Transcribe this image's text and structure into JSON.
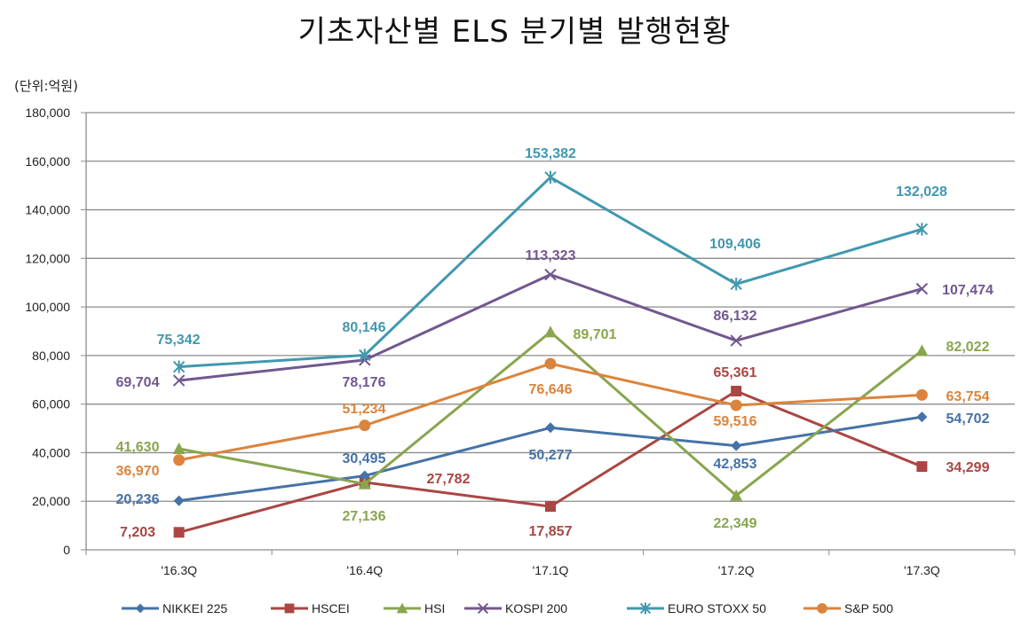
{
  "chart_data": {
    "type": "line",
    "title": "기초자산별 ELS 분기별 발행현황",
    "unit_label": "(단위:억원)",
    "categories": [
      "'16.3Q",
      "'16.4Q",
      "'17.1Q",
      "'17.2Q",
      "'17.3Q"
    ],
    "ylim": [
      0,
      180000
    ],
    "yticks": [
      "0",
      "20,000",
      "40,000",
      "60,000",
      "80,000",
      "100,000",
      "120,000",
      "140,000",
      "160,000",
      "180,000"
    ],
    "grid": true,
    "legend_position": "bottom",
    "series": [
      {
        "name": "NIKKEI 225",
        "color": "#4572a7",
        "marker": "diamond",
        "values": [
          20236,
          30495,
          50277,
          42853,
          54702
        ],
        "labels": [
          "20,236",
          "30,495",
          "50,277",
          "42,853",
          "54,702"
        ]
      },
      {
        "name": "HSCEI",
        "color": "#aa4643",
        "marker": "square",
        "values": [
          7203,
          27782,
          17857,
          65361,
          34299
        ],
        "labels": [
          "7,203",
          "27,782",
          "17,857",
          "65,361",
          "34,299"
        ]
      },
      {
        "name": "HSI",
        "color": "#89a54e",
        "marker": "triangle",
        "values": [
          41630,
          27136,
          89701,
          22349,
          82022
        ],
        "labels": [
          "41,630",
          "27,136",
          "89,701",
          "22,349",
          "82,022"
        ]
      },
      {
        "name": "KOSPI 200",
        "color": "#71588f",
        "marker": "x",
        "values": [
          69704,
          78176,
          113323,
          86132,
          107474
        ],
        "labels": [
          "69,704",
          "78,176",
          "113,323",
          "86,132",
          "107,474"
        ]
      },
      {
        "name": "EURO STOXX 50",
        "color": "#4198af",
        "marker": "star",
        "values": [
          75342,
          80146,
          153382,
          109406,
          132028
        ],
        "labels": [
          "75,342",
          "80,146",
          "153,382",
          "109,406",
          "132,028"
        ]
      },
      {
        "name": "S&P 500",
        "color": "#db843d",
        "marker": "circle",
        "values": [
          36970,
          51234,
          76646,
          59516,
          63754
        ],
        "labels": [
          "36,970",
          "51,234",
          "76,646",
          "59,516",
          "63,754"
        ]
      }
    ]
  }
}
